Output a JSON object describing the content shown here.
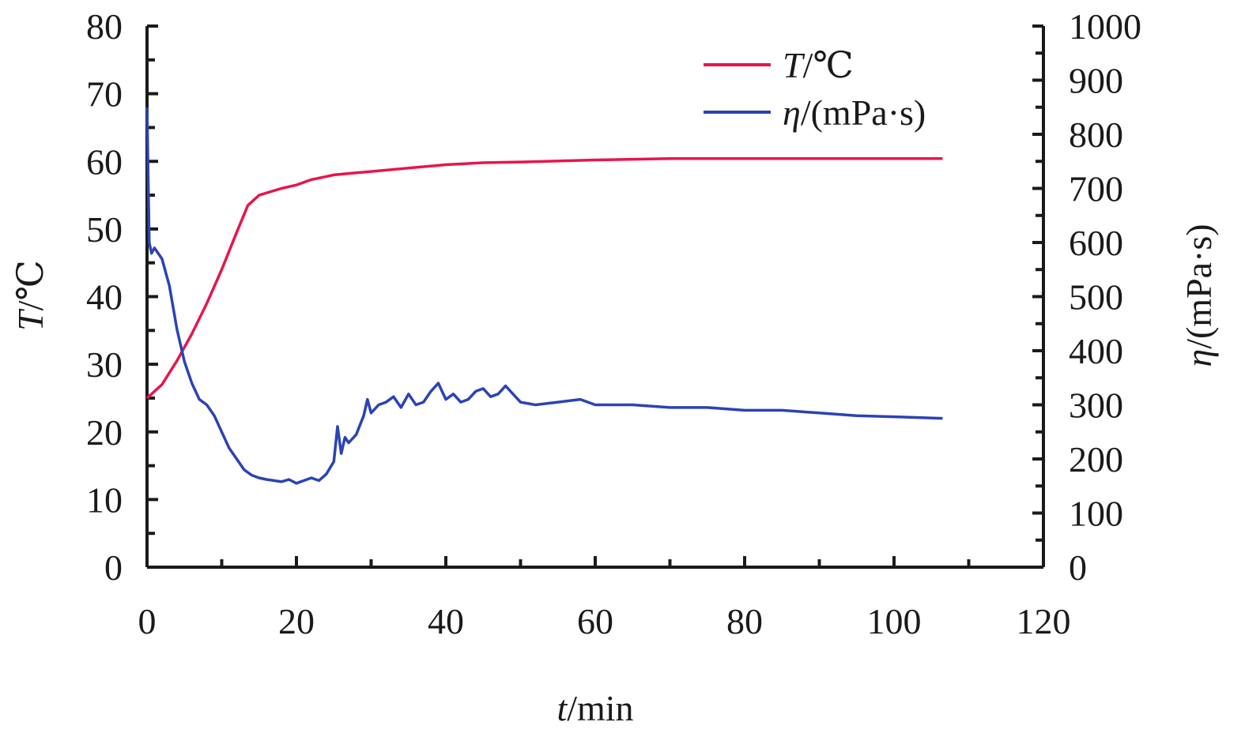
{
  "chart_data": {
    "type": "line",
    "title": "",
    "xlabel": {
      "var": "t",
      "unit": "/min"
    },
    "ylabel_left": {
      "var": "T",
      "unit": "/℃"
    },
    "ylabel_right": {
      "var": "η",
      "unit": "/(mPa·s)"
    },
    "xlim": [
      0,
      120
    ],
    "ylim_left": [
      0,
      80
    ],
    "ylim_right": [
      0,
      1000
    ],
    "x_ticks": [
      "0",
      "20",
      "40",
      "60",
      "80",
      "100",
      "120"
    ],
    "y_left_ticks": [
      "0",
      "10",
      "20",
      "30",
      "40",
      "50",
      "60",
      "70",
      "80"
    ],
    "y_right_ticks": [
      "0",
      "100",
      "200",
      "300",
      "400",
      "500",
      "600",
      "700",
      "800",
      "900",
      "1000"
    ],
    "grid": false,
    "legend_position": "top-right",
    "series": [
      {
        "name": "T/℃",
        "legend_var": "T",
        "legend_unit": "/℃",
        "axis": "left",
        "color": "#e8154a",
        "x": [
          0,
          2,
          4,
          6,
          8,
          10,
          12,
          13.5,
          15,
          18,
          20,
          22,
          25,
          28,
          30,
          35,
          40,
          45,
          50,
          60,
          70,
          80,
          90,
          100,
          106.5
        ],
        "y": [
          25,
          27,
          30.5,
          34.5,
          39,
          44,
          49.5,
          53.5,
          55,
          56,
          56.5,
          57.3,
          58,
          58.3,
          58.5,
          59,
          59.5,
          59.8,
          59.9,
          60.2,
          60.4,
          60.4,
          60.4,
          60.4,
          60.4
        ]
      },
      {
        "name": "η/(mPa·s)",
        "legend_var": "η",
        "legend_unit": "/(mPa·s)",
        "axis": "right",
        "color": "#2b43b4",
        "x": [
          0,
          0.3,
          0.6,
          1,
          2,
          3,
          4,
          5,
          6,
          7,
          8,
          9,
          10,
          11,
          12,
          13,
          14,
          15,
          16,
          17,
          18,
          19,
          20,
          21,
          22,
          23,
          24,
          25,
          25.5,
          26,
          26.5,
          27,
          28,
          29,
          29.5,
          30,
          31,
          32,
          33,
          34,
          35,
          36,
          37,
          38,
          39,
          40,
          41,
          42,
          43,
          44,
          45,
          46,
          47,
          48,
          49,
          50,
          52,
          55,
          58,
          60,
          65,
          70,
          75,
          80,
          85,
          90,
          95,
          100,
          106.5
        ],
        "y": [
          850,
          600,
          580,
          590,
          570,
          520,
          440,
          380,
          340,
          310,
          300,
          280,
          250,
          220,
          200,
          180,
          170,
          165,
          162,
          160,
          158,
          162,
          155,
          160,
          165,
          160,
          172,
          195,
          260,
          210,
          240,
          230,
          245,
          280,
          310,
          285,
          300,
          305,
          315,
          295,
          320,
          300,
          305,
          325,
          340,
          310,
          320,
          305,
          310,
          325,
          330,
          315,
          320,
          335,
          320,
          305,
          300,
          305,
          310,
          300,
          300,
          295,
          295,
          290,
          290,
          285,
          280,
          278,
          275
        ]
      }
    ]
  }
}
